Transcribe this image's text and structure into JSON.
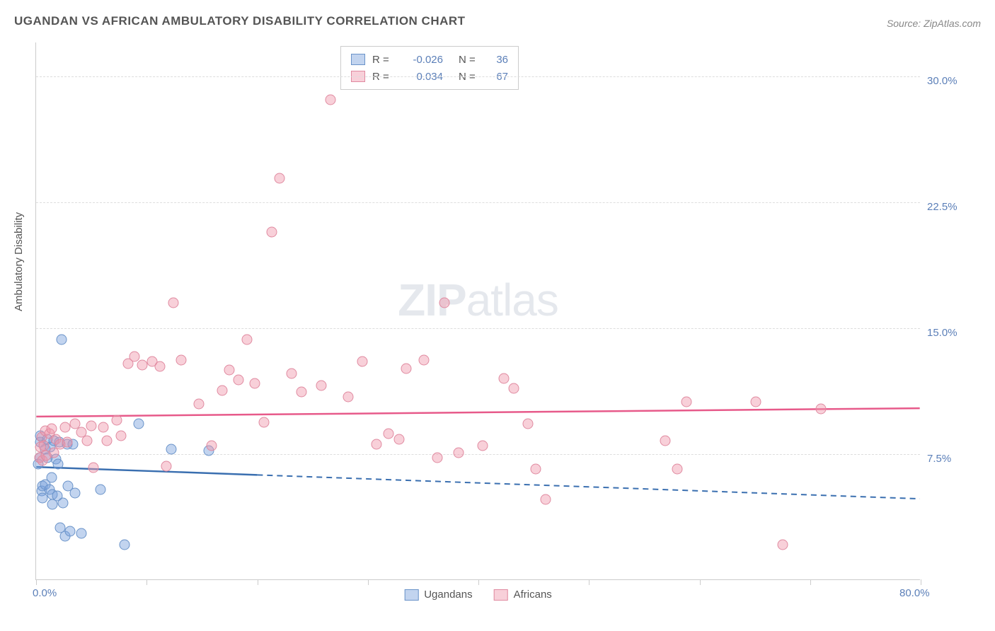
{
  "title": "UGANDAN VS AFRICAN AMBULATORY DISABILITY CORRELATION CHART",
  "source": "Source: ZipAtlas.com",
  "watermark_zip": "ZIP",
  "watermark_atlas": "atlas",
  "ylabel": "Ambulatory Disability",
  "chart": {
    "type": "scatter",
    "xlim": [
      0,
      80
    ],
    "ylim": [
      0,
      32
    ],
    "xtick_positions": [
      0,
      10,
      20,
      30,
      40,
      50,
      60,
      70,
      80
    ],
    "xtick_labels_shown": {
      "0": "0.0%",
      "80": "80.0%"
    },
    "ytick_positions": [
      7.5,
      15.0,
      22.5,
      30.0
    ],
    "ytick_labels": [
      "7.5%",
      "15.0%",
      "22.5%",
      "30.0%"
    ],
    "grid_color": "#dddddd",
    "background_color": "#ffffff",
    "series": [
      {
        "name": "Ugandans",
        "fill_color": "rgba(120,160,220,0.45)",
        "stroke_color": "#6a93c9",
        "marker_size": 15,
        "R": "-0.026",
        "N": "36",
        "trend": {
          "y_start": 6.7,
          "y_end": 4.8,
          "solid_until_x": 20,
          "color": "#3a6fb0"
        },
        "points": [
          [
            0.2,
            6.9
          ],
          [
            0.3,
            7.3
          ],
          [
            0.4,
            8.2
          ],
          [
            0.4,
            8.6
          ],
          [
            0.5,
            5.3
          ],
          [
            0.6,
            5.6
          ],
          [
            0.6,
            4.9
          ],
          [
            0.8,
            5.7
          ],
          [
            0.8,
            7.8
          ],
          [
            1.0,
            8.4
          ],
          [
            1.0,
            7.3
          ],
          [
            1.2,
            5.4
          ],
          [
            1.3,
            7.9
          ],
          [
            1.4,
            6.1
          ],
          [
            1.5,
            5.1
          ],
          [
            1.5,
            4.5
          ],
          [
            1.6,
            8.3
          ],
          [
            1.8,
            7.2
          ],
          [
            1.9,
            5.0
          ],
          [
            2.0,
            6.9
          ],
          [
            2.1,
            8.2
          ],
          [
            2.2,
            3.1
          ],
          [
            2.3,
            14.3
          ],
          [
            2.4,
            4.6
          ],
          [
            2.6,
            2.6
          ],
          [
            2.8,
            8.1
          ],
          [
            2.9,
            5.6
          ],
          [
            3.1,
            2.9
          ],
          [
            3.3,
            8.1
          ],
          [
            3.5,
            5.2
          ],
          [
            4.1,
            2.8
          ],
          [
            5.8,
            5.4
          ],
          [
            8.0,
            2.1
          ],
          [
            9.3,
            9.3
          ],
          [
            12.2,
            7.8
          ],
          [
            15.6,
            7.7
          ]
        ]
      },
      {
        "name": "Africans",
        "fill_color": "rgba(240,150,170,0.45)",
        "stroke_color": "#e08aa0",
        "marker_size": 15,
        "R": "0.034",
        "N": "67",
        "trend": {
          "y_start": 9.7,
          "y_end": 10.2,
          "solid_until_x": 80,
          "color": "#e75a8a"
        },
        "points": [
          [
            0.3,
            7.3
          ],
          [
            0.4,
            7.9
          ],
          [
            0.5,
            8.5
          ],
          [
            0.6,
            7.1
          ],
          [
            0.7,
            8.0
          ],
          [
            0.8,
            8.9
          ],
          [
            0.9,
            7.4
          ],
          [
            1.2,
            8.7
          ],
          [
            1.4,
            9.0
          ],
          [
            1.6,
            7.6
          ],
          [
            1.8,
            8.4
          ],
          [
            2.2,
            8.1
          ],
          [
            2.6,
            9.1
          ],
          [
            2.8,
            8.2
          ],
          [
            3.5,
            9.3
          ],
          [
            4.1,
            8.8
          ],
          [
            4.6,
            8.3
          ],
          [
            5.0,
            9.2
          ],
          [
            5.2,
            6.7
          ],
          [
            6.1,
            9.1
          ],
          [
            6.4,
            8.3
          ],
          [
            7.3,
            9.5
          ],
          [
            7.7,
            8.6
          ],
          [
            8.3,
            12.9
          ],
          [
            8.9,
            13.3
          ],
          [
            9.6,
            12.8
          ],
          [
            10.5,
            13.0
          ],
          [
            11.2,
            12.7
          ],
          [
            11.8,
            6.8
          ],
          [
            12.4,
            16.5
          ],
          [
            13.1,
            13.1
          ],
          [
            14.7,
            10.5
          ],
          [
            15.9,
            8.0
          ],
          [
            16.8,
            11.3
          ],
          [
            17.5,
            12.5
          ],
          [
            18.3,
            11.9
          ],
          [
            19.1,
            14.3
          ],
          [
            19.8,
            11.7
          ],
          [
            20.6,
            9.4
          ],
          [
            21.3,
            20.7
          ],
          [
            22.0,
            23.9
          ],
          [
            23.1,
            12.3
          ],
          [
            24.0,
            11.2
          ],
          [
            25.8,
            11.6
          ],
          [
            26.6,
            28.6
          ],
          [
            28.2,
            10.9
          ],
          [
            29.5,
            13.0
          ],
          [
            30.8,
            8.1
          ],
          [
            31.9,
            8.7
          ],
          [
            32.8,
            8.4
          ],
          [
            33.5,
            12.6
          ],
          [
            35.1,
            13.1
          ],
          [
            36.3,
            7.3
          ],
          [
            36.9,
            16.5
          ],
          [
            38.2,
            7.6
          ],
          [
            40.4,
            8.0
          ],
          [
            42.3,
            12.0
          ],
          [
            43.2,
            11.4
          ],
          [
            44.5,
            9.3
          ],
          [
            45.2,
            6.6
          ],
          [
            46.1,
            4.8
          ],
          [
            56.9,
            8.3
          ],
          [
            58.0,
            6.6
          ],
          [
            58.8,
            10.6
          ],
          [
            65.1,
            10.6
          ],
          [
            67.5,
            2.1
          ],
          [
            71.0,
            10.2
          ]
        ]
      }
    ]
  },
  "legend_bottom": [
    {
      "label": "Ugandans",
      "fill": "rgba(120,160,220,0.45)",
      "stroke": "#6a93c9"
    },
    {
      "label": "Africans",
      "fill": "rgba(240,150,170,0.45)",
      "stroke": "#e08aa0"
    }
  ],
  "label_Req": "R =",
  "label_Neq": "N ="
}
